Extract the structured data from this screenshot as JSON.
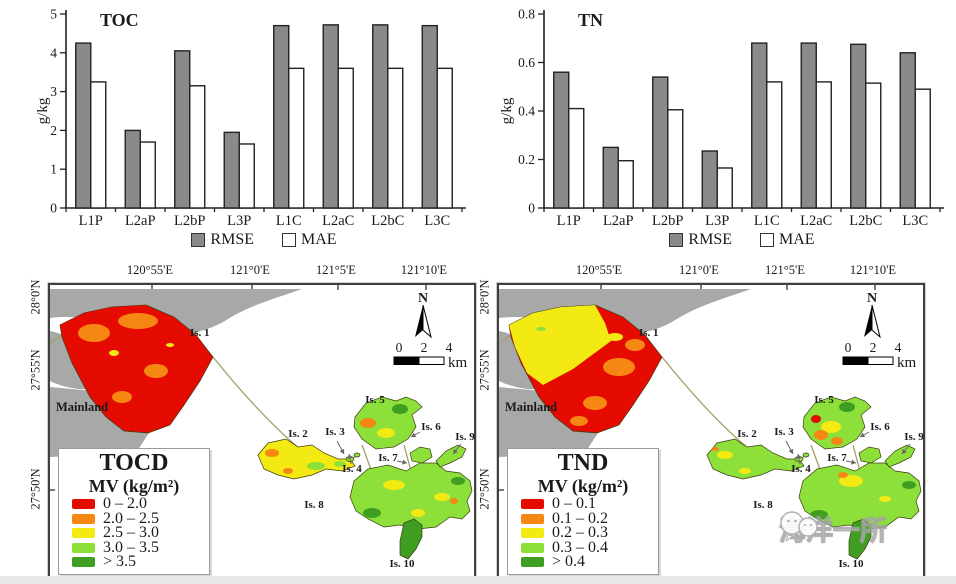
{
  "palette": {
    "red": "#e60b00",
    "orange": "#f68712",
    "yellow": "#f2ea12",
    "lightgreen": "#8ddf3a",
    "green": "#3f9e22",
    "land_gray": "#a8a8a8",
    "road": "#a59e66",
    "bar_gray": "#8a8a8a",
    "bar_white": "#ffffff"
  },
  "chart_data": [
    {
      "type": "bar",
      "title": "TOC",
      "ylabel": "g/kg",
      "ylim": [
        0,
        5
      ],
      "yticks": [
        "0",
        "1",
        "2",
        "3",
        "4",
        "5"
      ],
      "grid": false,
      "legend_position": "bottom",
      "categories": [
        "L1P",
        "L2aP",
        "L2bP",
        "L3P",
        "L1C",
        "L2aC",
        "L2bC",
        "L3C"
      ],
      "series": [
        {
          "name": "RMSE",
          "color": "#8a8a8a",
          "values": [
            4.25,
            2.0,
            4.05,
            1.95,
            4.7,
            4.72,
            4.72,
            4.7
          ]
        },
        {
          "name": "MAE",
          "color": "#ffffff",
          "values": [
            3.25,
            1.7,
            3.15,
            1.65,
            3.6,
            3.6,
            3.6,
            3.6
          ]
        }
      ]
    },
    {
      "type": "bar",
      "title": "TN",
      "ylabel": "g/kg",
      "ylim": [
        0,
        0.8
      ],
      "yticks": [
        "0",
        "0.2",
        "0.4",
        "0.6",
        "0.8"
      ],
      "grid": false,
      "legend_position": "bottom",
      "categories": [
        "L1P",
        "L2aP",
        "L2bP",
        "L3P",
        "L1C",
        "L2aC",
        "L2bC",
        "L3C"
      ],
      "series": [
        {
          "name": "RMSE",
          "color": "#8a8a8a",
          "values": [
            0.56,
            0.25,
            0.54,
            0.235,
            0.68,
            0.68,
            0.675,
            0.64
          ]
        },
        {
          "name": "MAE",
          "color": "#ffffff",
          "values": [
            0.41,
            0.195,
            0.405,
            0.165,
            0.52,
            0.52,
            0.515,
            0.49
          ]
        }
      ]
    }
  ],
  "maps_shared": {
    "lon_labels": [
      "120°55'E",
      "121°0'E",
      "121°5'E",
      "121°10'E"
    ],
    "lat_labels": [
      "28°0'N",
      "27°55'N",
      "27°50'N"
    ],
    "islands": [
      "Is. 1",
      "Is. 2",
      "Is. 3",
      "Is. 4",
      "Is. 5",
      "Is. 6",
      "Is. 7",
      "Is. 8",
      "Is. 9",
      "Is. 10"
    ],
    "mainland": "Mainland",
    "north": "N",
    "scale_ticks": [
      "0",
      "2",
      "4"
    ],
    "scale_unit": "km"
  },
  "maps": [
    {
      "legend": {
        "title": "TOCD",
        "unit": "MV (kg/m²)",
        "classes": [
          {
            "label": "0 – 2.0",
            "color": "#e60b00"
          },
          {
            "label": "2.0 – 2.5",
            "color": "#f68712"
          },
          {
            "label": "2.5 – 3.0",
            "color": "#f2ea12"
          },
          {
            "label": "3.0 – 3.5",
            "color": "#8ddf3a"
          },
          {
            "label": "> 3.5",
            "color": "#3f9e22"
          }
        ]
      }
    },
    {
      "legend": {
        "title": "TND",
        "unit": "MV (kg/m²)",
        "classes": [
          {
            "label": "0 – 0.1",
            "color": "#e60b00"
          },
          {
            "label": "0.1 – 0.2",
            "color": "#f68712"
          },
          {
            "label": "0.2 – 0.3",
            "color": "#f2ea12"
          },
          {
            "label": "0.3 – 0.4",
            "color": "#8ddf3a"
          },
          {
            "label": "> 0.4",
            "color": "#3f9e22"
          }
        ]
      }
    }
  ],
  "watermark": {
    "text": "海洋一所"
  }
}
